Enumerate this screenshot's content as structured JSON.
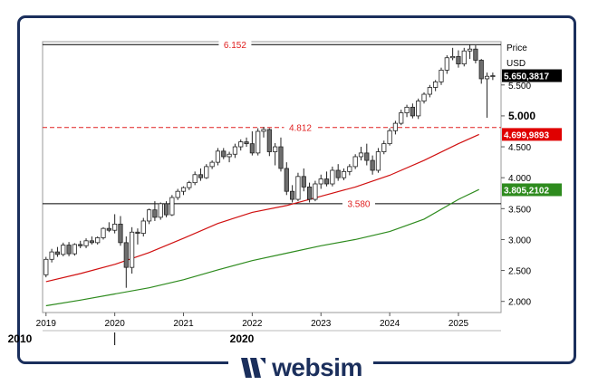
{
  "brand": {
    "logo_text": "websim"
  },
  "chart_data": {
    "type": "candlestick",
    "ylabel": "Price",
    "yunit": "USD",
    "ylim": [
      1.82,
      6.2
    ],
    "xlim": [
      2018.95,
      2025.62
    ],
    "y_ticks": [
      {
        "value": 2.0,
        "label": "2.000"
      },
      {
        "value": 2.5,
        "label": "2.500"
      },
      {
        "value": 3.0,
        "label": "3.000"
      },
      {
        "value": 3.5,
        "label": "3.500"
      },
      {
        "value": 4.0,
        "label": "4.000"
      },
      {
        "value": 4.5,
        "label": "4.500"
      },
      {
        "value": 5.0,
        "label": "5.000"
      },
      {
        "value": 5.5,
        "label": "5.500"
      }
    ],
    "x_ticks": [
      {
        "value": 2019,
        "label": "2019"
      },
      {
        "value": 2020,
        "label": "2020"
      },
      {
        "value": 2021,
        "label": "2021"
      },
      {
        "value": 2022,
        "label": "2022"
      },
      {
        "value": 2023,
        "label": "2023"
      },
      {
        "value": 2024,
        "label": "2024"
      },
      {
        "value": 2025,
        "label": "2025"
      }
    ],
    "decade_labels": [
      {
        "value": 2018.62,
        "label": "2010"
      },
      {
        "value": 2021.85,
        "label": "2020"
      }
    ],
    "horizontal_levels": [
      {
        "value": 6.152,
        "label": "6.152",
        "style": "solid",
        "color": "#000000"
      },
      {
        "value": 4.812,
        "label": "4.812",
        "style": "dashed",
        "color": "#e02020"
      },
      {
        "value": 3.58,
        "label": "3.580",
        "style": "solid",
        "color": "#000000"
      }
    ],
    "price_tags": [
      {
        "value": 5.65,
        "label": "5.650,3817",
        "color": "#000000"
      },
      {
        "value": 4.6999893,
        "label": "4.699,9893",
        "color": "#e00000"
      },
      {
        "value": 3.8052102,
        "label": "3.805,2102",
        "color": "#2e8b1e"
      }
    ],
    "x_start": 2019.0,
    "period": 0.08333,
    "ohlc": [
      [
        2.43,
        2.72,
        2.39,
        2.68
      ],
      [
        2.68,
        2.85,
        2.63,
        2.8
      ],
      [
        2.8,
        2.88,
        2.72,
        2.76
      ],
      [
        2.76,
        2.95,
        2.73,
        2.91
      ],
      [
        2.91,
        2.96,
        2.73,
        2.77
      ],
      [
        2.77,
        2.94,
        2.74,
        2.92
      ],
      [
        2.92,
        2.98,
        2.86,
        2.9
      ],
      [
        2.9,
        3.02,
        2.86,
        2.98
      ],
      [
        2.98,
        3.05,
        2.92,
        2.95
      ],
      [
        2.95,
        3.05,
        2.92,
        3.03
      ],
      [
        3.03,
        3.2,
        3.0,
        3.18
      ],
      [
        3.18,
        3.28,
        3.12,
        3.15
      ],
      [
        3.15,
        3.41,
        3.1,
        3.25
      ],
      [
        3.25,
        3.38,
        2.9,
        2.95
      ],
      [
        2.95,
        3.05,
        2.22,
        2.55
      ],
      [
        2.55,
        3.2,
        2.45,
        3.12
      ],
      [
        3.12,
        3.18,
        2.92,
        3.1
      ],
      [
        3.1,
        3.35,
        3.05,
        3.3
      ],
      [
        3.3,
        3.5,
        3.25,
        3.48
      ],
      [
        3.48,
        3.62,
        3.3,
        3.36
      ],
      [
        3.36,
        3.6,
        3.32,
        3.58
      ],
      [
        3.58,
        3.62,
        3.36,
        3.4
      ],
      [
        3.4,
        3.72,
        3.38,
        3.68
      ],
      [
        3.68,
        3.82,
        3.64,
        3.78
      ],
      [
        3.78,
        3.86,
        3.72,
        3.84
      ],
      [
        3.84,
        3.95,
        3.8,
        3.92
      ],
      [
        3.92,
        4.1,
        3.88,
        4.05
      ],
      [
        4.05,
        4.15,
        3.95,
        4.0
      ],
      [
        4.0,
        4.22,
        3.98,
        4.18
      ],
      [
        4.18,
        4.28,
        4.14,
        4.25
      ],
      [
        4.25,
        4.48,
        4.2,
        4.43
      ],
      [
        4.43,
        4.48,
        4.3,
        4.34
      ],
      [
        4.34,
        4.42,
        4.25,
        4.38
      ],
      [
        4.38,
        4.55,
        4.32,
        4.5
      ],
      [
        4.5,
        4.62,
        4.44,
        4.58
      ],
      [
        4.58,
        4.65,
        4.5,
        4.55
      ],
      [
        4.55,
        4.75,
        4.36,
        4.4
      ],
      [
        4.4,
        4.8,
        4.36,
        4.75
      ],
      [
        4.75,
        4.82,
        4.65,
        4.78
      ],
      [
        4.78,
        4.8,
        4.35,
        4.42
      ],
      [
        4.42,
        4.56,
        4.2,
        4.5
      ],
      [
        4.5,
        4.65,
        4.1,
        4.15
      ],
      [
        4.15,
        4.25,
        3.72,
        3.78
      ],
      [
        3.78,
        3.88,
        3.6,
        3.65
      ],
      [
        3.65,
        4.08,
        3.62,
        4.02
      ],
      [
        4.02,
        4.15,
        3.78,
        3.85
      ],
      [
        3.85,
        3.92,
        3.6,
        3.65
      ],
      [
        3.65,
        3.95,
        3.62,
        3.9
      ],
      [
        3.9,
        4.05,
        3.82,
        3.98
      ],
      [
        3.98,
        4.1,
        3.86,
        3.9
      ],
      [
        3.9,
        4.18,
        3.86,
        4.12
      ],
      [
        4.12,
        4.22,
        3.95,
        4.0
      ],
      [
        4.0,
        4.15,
        3.96,
        4.1
      ],
      [
        4.1,
        4.22,
        4.04,
        4.18
      ],
      [
        4.18,
        4.38,
        4.14,
        4.34
      ],
      [
        4.34,
        4.5,
        4.28,
        4.4
      ],
      [
        4.4,
        4.55,
        4.2,
        4.28
      ],
      [
        4.28,
        4.36,
        4.05,
        4.12
      ],
      [
        4.12,
        4.48,
        4.08,
        4.42
      ],
      [
        4.42,
        4.6,
        4.38,
        4.55
      ],
      [
        4.55,
        4.8,
        4.52,
        4.76
      ],
      [
        4.76,
        4.92,
        4.7,
        4.88
      ],
      [
        4.88,
        5.1,
        4.85,
        5.05
      ],
      [
        5.05,
        5.18,
        4.98,
        5.14
      ],
      [
        5.14,
        5.2,
        4.96,
        5.0
      ],
      [
        5.0,
        5.28,
        4.95,
        5.24
      ],
      [
        5.24,
        5.38,
        5.2,
        5.35
      ],
      [
        5.35,
        5.5,
        5.3,
        5.46
      ],
      [
        5.46,
        5.58,
        5.4,
        5.55
      ],
      [
        5.55,
        5.78,
        5.5,
        5.74
      ],
      [
        5.74,
        5.98,
        5.68,
        5.94
      ],
      [
        5.94,
        6.1,
        5.9,
        5.96
      ],
      [
        5.96,
        6.06,
        5.78,
        5.84
      ],
      [
        5.84,
        6.1,
        5.8,
        6.05
      ],
      [
        6.05,
        6.15,
        5.92,
        6.08
      ],
      [
        6.08,
        6.14,
        5.85,
        5.9
      ],
      [
        5.9,
        5.92,
        5.52,
        5.6
      ],
      [
        5.6,
        5.7,
        4.97,
        5.64
      ],
      [
        5.64,
        5.7,
        5.58,
        5.65
      ]
    ],
    "series": [
      {
        "color": "#d01010",
        "x": [
          2019.0,
          2019.5,
          2020.0,
          2020.5,
          2021.0,
          2021.5,
          2022.0,
          2022.5,
          2023.0,
          2023.5,
          2024.0,
          2024.5,
          2025.0,
          2025.3
        ],
        "values": [
          2.32,
          2.45,
          2.6,
          2.79,
          3.02,
          3.26,
          3.44,
          3.55,
          3.7,
          3.85,
          4.04,
          4.28,
          4.55,
          4.7
        ]
      },
      {
        "color": "#2e8b1e",
        "x": [
          2019.0,
          2019.5,
          2020.0,
          2020.5,
          2021.0,
          2021.5,
          2022.0,
          2022.5,
          2023.0,
          2023.5,
          2024.0,
          2024.5,
          2025.0,
          2025.3
        ],
        "values": [
          1.93,
          2.02,
          2.12,
          2.22,
          2.35,
          2.51,
          2.66,
          2.78,
          2.9,
          3.0,
          3.13,
          3.33,
          3.65,
          3.81
        ]
      }
    ]
  }
}
